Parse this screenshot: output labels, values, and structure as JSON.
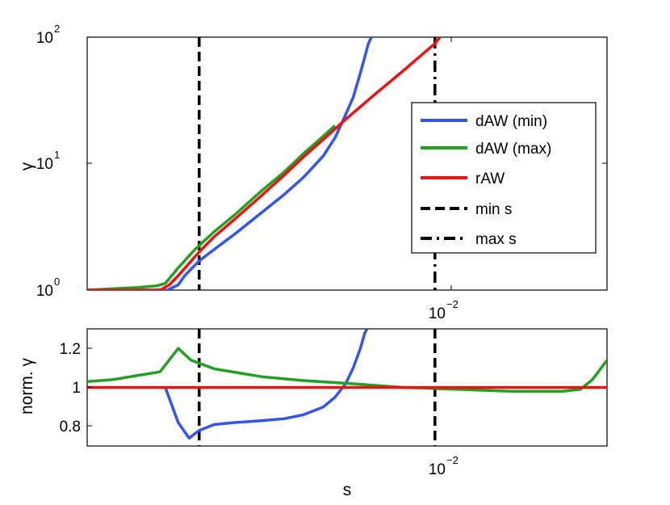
{
  "chart_data": [
    {
      "type": "line",
      "panel": "top",
      "xscale": "log",
      "yscale": "log",
      "ylabel": "γ",
      "ylim": [
        1,
        100
      ],
      "yticks": [
        {
          "base": "10",
          "exp": "0",
          "value": 1
        },
        {
          "base": "10",
          "exp": "1",
          "value": 10
        },
        {
          "base": "10",
          "exp": "2",
          "value": 100
        }
      ],
      "xtick": {
        "base": "10",
        "exp": "−2",
        "value": 0.01
      },
      "xlim": [
        0.00067,
        0.0381
      ],
      "legend": {
        "placement": "right",
        "entries": [
          {
            "label": "dAW (min)",
            "color": "#3355ee",
            "style": "solid"
          },
          {
            "label": "dAW (max)",
            "color": "#22a022",
            "style": "solid"
          },
          {
            "label": "rAW",
            "color": "#ee1111",
            "style": "solid"
          },
          {
            "label": "min s",
            "color": "#000000",
            "style": "dashed"
          },
          {
            "label": "max s",
            "color": "#000000",
            "style": "dashdot"
          }
        ]
      },
      "series": [
        {
          "name": "dAW (min)",
          "color": "#3355ee",
          "x": [
            0.00067,
            0.00125,
            0.00136,
            0.00143,
            0.0016,
            0.0018,
            0.0021,
            0.0026,
            0.0031,
            0.0036,
            0.0042,
            0.0046,
            0.005,
            0.0053,
            0.0056,
            0.0058,
            0.00595,
            0.0061
          ],
          "y": [
            1,
            1,
            1.1,
            1.3,
            1.7,
            2.1,
            2.75,
            4.1,
            5.7,
            7.8,
            11.5,
            16,
            24.5,
            33.5,
            52,
            70,
            88,
            100
          ]
        },
        {
          "name": "dAW (max)",
          "color": "#22a022",
          "x": [
            0.00067,
            0.001,
            0.00115,
            0.00123,
            0.00136,
            0.00155,
            0.0018,
            0.0021,
            0.0026,
            0.0031,
            0.0036,
            0.0042,
            0.0046
          ],
          "y": [
            1,
            1.05,
            1.08,
            1.13,
            1.5,
            2.1,
            2.9,
            3.9,
            6.1,
            8.6,
            12.0,
            16.5,
            20
          ]
        },
        {
          "name": "rAW",
          "color": "#ee1111",
          "x": [
            0.00067,
            0.00118,
            0.00127,
            0.00136,
            0.0016,
            0.0018,
            0.0021,
            0.0026,
            0.0031,
            0.0036,
            0.0042,
            0.005,
            0.0062,
            0.0078,
            0.01,
            0.0104
          ],
          "y": [
            1,
            1,
            1.1,
            1.3,
            2.0,
            2.65,
            3.6,
            5.6,
            8.1,
            11.3,
            15.5,
            22.4,
            34.5,
            54,
            89,
            100
          ]
        }
      ],
      "vlines": [
        {
          "name": "min s",
          "x": 0.0016,
          "style": "dashed"
        },
        {
          "name": "max s",
          "x": 0.01,
          "style": "dashdot"
        }
      ]
    },
    {
      "type": "line",
      "panel": "bottom",
      "xscale": "log",
      "xlabel": "s",
      "ylabel": "norm. γ",
      "ylim": [
        0.7,
        1.3
      ],
      "yticks": [
        "0.8",
        "1",
        "1.2"
      ],
      "xtick": {
        "base": "10",
        "exp": "−2",
        "value": 0.01
      },
      "xlim": [
        0.00067,
        0.0381
      ],
      "series": [
        {
          "name": "dAW (min)",
          "color": "#3355ee",
          "x": [
            0.00123,
            0.00136,
            0.00148,
            0.0016,
            0.0018,
            0.0021,
            0.0026,
            0.0031,
            0.0036,
            0.0042,
            0.0046,
            0.005,
            0.0053,
            0.0056,
            0.0058,
            0.0059
          ],
          "y": [
            1.0,
            0.82,
            0.74,
            0.78,
            0.81,
            0.82,
            0.83,
            0.84,
            0.86,
            0.9,
            0.95,
            1.02,
            1.1,
            1.2,
            1.28,
            1.3
          ]
        },
        {
          "name": "dAW (max)",
          "color": "#22a022",
          "x": [
            0.00067,
            0.00082,
            0.00098,
            0.00118,
            0.00136,
            0.0015,
            0.0018,
            0.0026,
            0.0036,
            0.0052,
            0.0078,
            0.012,
            0.018,
            0.027,
            0.031,
            0.034,
            0.0381
          ],
          "y": [
            1.03,
            1.04,
            1.06,
            1.08,
            1.2,
            1.14,
            1.095,
            1.055,
            1.035,
            1.02,
            1.0,
            0.99,
            0.98,
            0.98,
            0.99,
            1.04,
            1.14
          ]
        },
        {
          "name": "rAW",
          "color": "#ee1111",
          "x": [
            0.00067,
            0.0381
          ],
          "y": [
            1.0,
            1.0
          ]
        }
      ],
      "vlines": [
        {
          "name": "min s",
          "x": 0.0016,
          "style": "dashed"
        },
        {
          "name": "max s",
          "x": 0.01,
          "style": "dashed"
        }
      ]
    }
  ]
}
